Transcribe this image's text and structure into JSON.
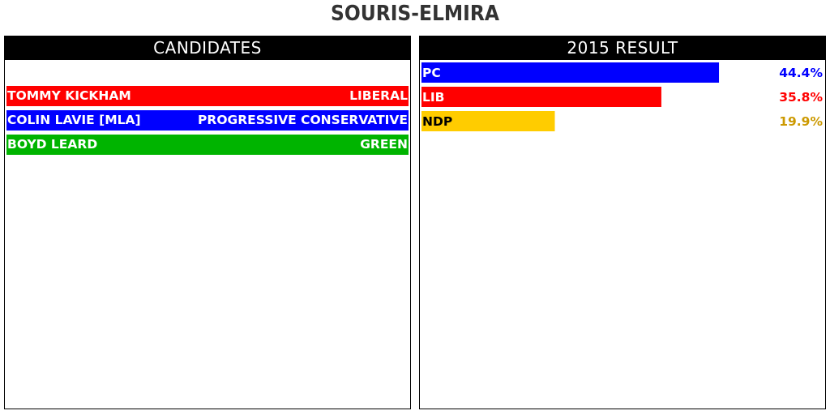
{
  "title": "SOURIS-ELMIRA",
  "candidates_panel": {
    "header": "CANDIDATES",
    "candidates": [
      {
        "name": "TOMMY KICKHAM",
        "party": "LIBERAL",
        "color": "#ff0000"
      },
      {
        "name": "COLIN LAVIE [MLA]",
        "party": "PROGRESSIVE CONSERVATIVE",
        "color": "#0000ff"
      },
      {
        "name": "BOYD LEARD",
        "party": "GREEN",
        "color": "#00b400"
      }
    ]
  },
  "result_panel": {
    "header": "2015 RESULT"
  },
  "chart_data": {
    "type": "bar",
    "orientation": "horizontal",
    "title": "2015 RESULT",
    "categories": [
      "PC",
      "LIB",
      "NDP"
    ],
    "values": [
      44.4,
      35.8,
      19.9
    ],
    "value_labels": [
      "44.4%",
      "35.8%",
      "19.9%"
    ],
    "bar_colors": [
      "#0000ff",
      "#ff0000",
      "#ffcc00"
    ],
    "category_label_colors": [
      "#ffffff",
      "#ffffff",
      "#000000"
    ],
    "value_label_colors": [
      "#0000ff",
      "#ff0000",
      "#cc9900"
    ],
    "xlim": [
      0,
      60
    ]
  }
}
